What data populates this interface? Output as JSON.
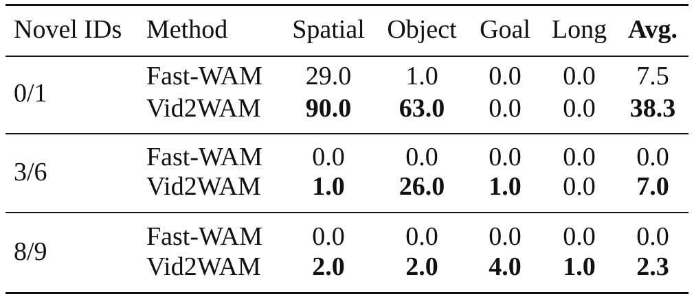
{
  "table": {
    "header": [
      "Novel IDs",
      "Method",
      "Spatial",
      "Object",
      "Goal",
      "Long",
      "Avg."
    ],
    "groups": [
      {
        "ids": "0/1",
        "rows": [
          [
            "Fast-WAM",
            "29.0",
            "1.0",
            "0.0",
            "0.0",
            "7.5"
          ],
          [
            "Vid2WAM",
            "90.0",
            "63.0",
            "0.0",
            "0.0",
            "38.3"
          ]
        ]
      },
      {
        "ids": "3/6",
        "rows": [
          [
            "Fast-WAM",
            "0.0",
            "0.0",
            "0.0",
            "0.0",
            "0.0"
          ],
          [
            "Vid2WAM",
            "1.0",
            "26.0",
            "1.0",
            "0.0",
            "7.0"
          ]
        ]
      },
      {
        "ids": "8/9",
        "rows": [
          [
            "Fast-WAM",
            "0.0",
            "0.0",
            "0.0",
            "0.0",
            "0.0"
          ],
          [
            "Vid2WAM",
            "2.0",
            "2.0",
            "4.0",
            "1.0",
            "2.3"
          ]
        ]
      }
    ]
  }
}
